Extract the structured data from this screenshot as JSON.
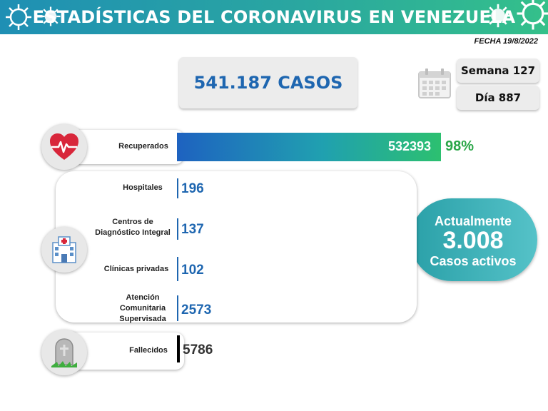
{
  "header": {
    "title": "ESTADÍSTICAS DEL CORONAVIRUS EN VENEZUELA",
    "date": "FECHA 19/8/2022"
  },
  "summary": {
    "total_cases": "541.187 CASOS",
    "week": "Semana 127",
    "day": "Día 887"
  },
  "recovered": {
    "label": "Recuperados",
    "value": "532393",
    "percent": "98%",
    "share": 0.98
  },
  "facilities": [
    {
      "label": "Hospitales",
      "value": "196"
    },
    {
      "label": "Centros de Diagnóstico Integral",
      "value": "137"
    },
    {
      "label": "Clínicas privadas",
      "value": "102"
    },
    {
      "label": "Atención Comunitaria Supervisada",
      "value": "2573"
    }
  ],
  "deceased": {
    "label": "Fallecidos",
    "value": "5786"
  },
  "active": {
    "line1": "Actualmente",
    "count": "3.008",
    "line2": "Casos activos"
  },
  "colors": {
    "accent_blue": "#1e66b0",
    "accent_green": "#2aa648",
    "teal": "#2aa0a8"
  },
  "icons": {
    "recovered": "heart-pulse-icon",
    "facilities": "hospital-icon",
    "deceased": "tombstone-icon",
    "calendar": "calendar-icon"
  }
}
